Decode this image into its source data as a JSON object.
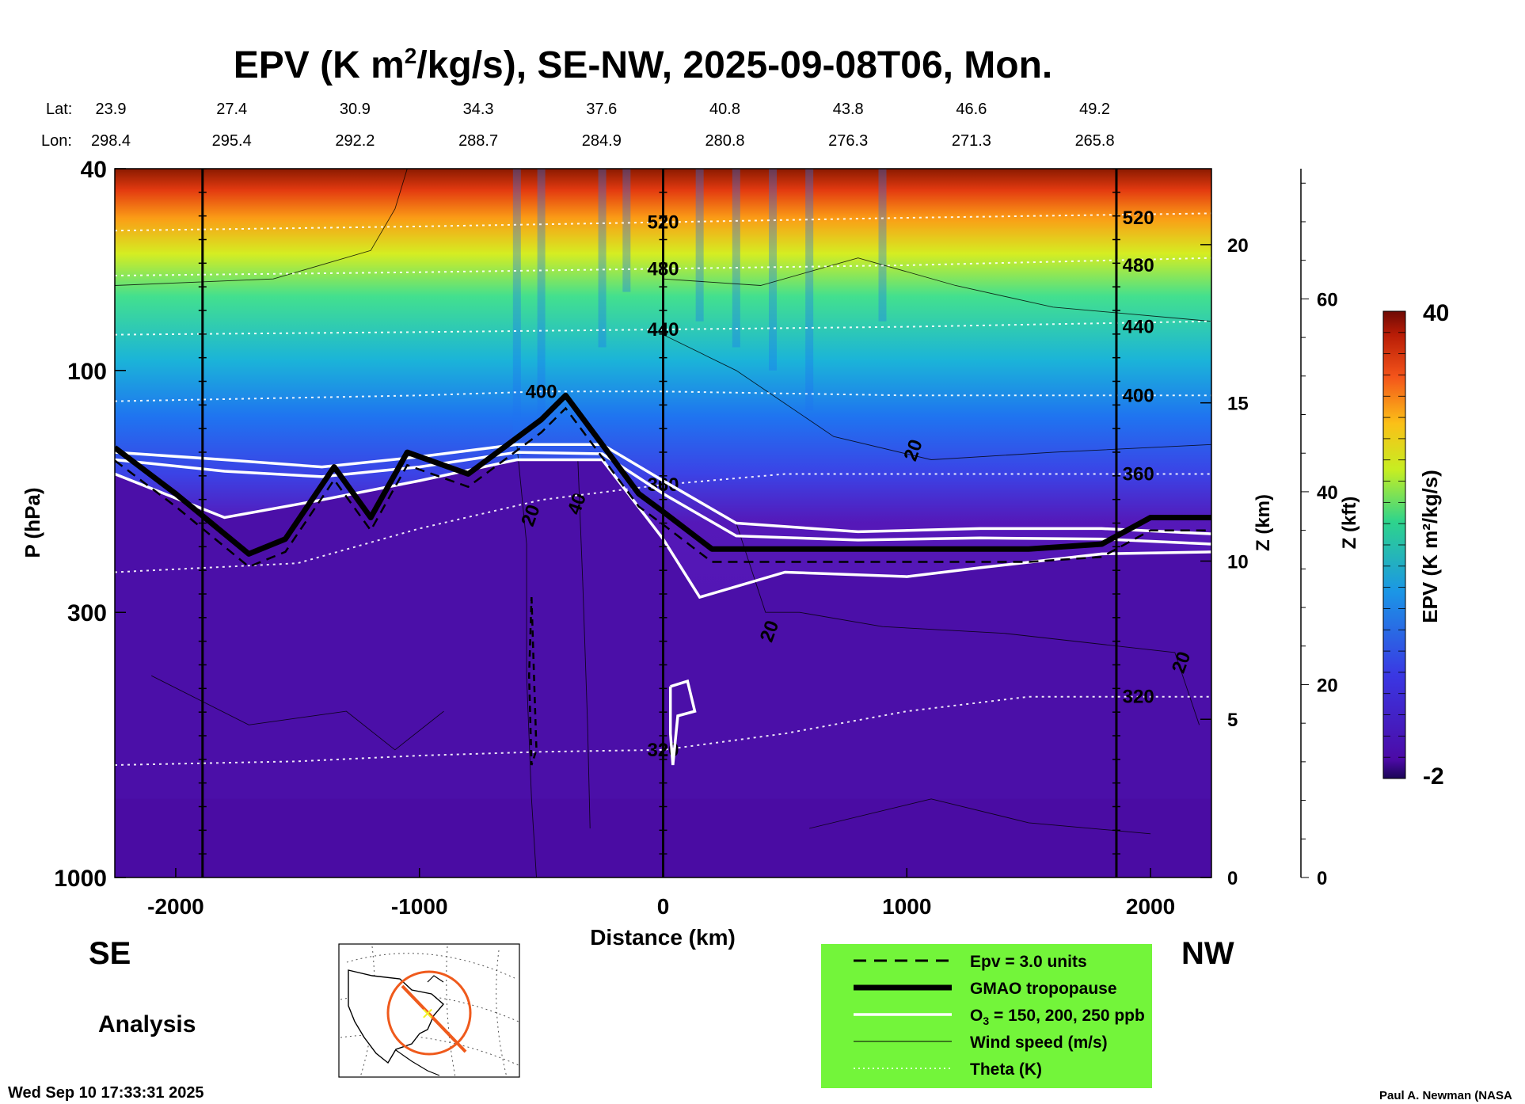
{
  "chart_data": {
    "type": "heatmap",
    "title": {
      "prefix": "EPV (K m",
      "sup": "2",
      "suffix": "/kg/s), SE-NW, 2025-09-08T06, Mon."
    },
    "xlabel": "Distance (km)",
    "ylabel": "P (hPa)",
    "xlim": [
      -2250,
      2250
    ],
    "x_ticks": [
      {
        "value": -2000,
        "label": "-2000"
      },
      {
        "value": -1000,
        "label": "-1000"
      },
      {
        "value": 0,
        "label": "0"
      },
      {
        "value": 1000,
        "label": "1000"
      },
      {
        "value": 2000,
        "label": "2000"
      }
    ],
    "ylim": [
      1000,
      40
    ],
    "y_ticks": [
      {
        "value": 40,
        "label": "40"
      },
      {
        "value": 100,
        "label": "100"
      },
      {
        "value": 300,
        "label": "300"
      },
      {
        "value": 1000,
        "label": "1000"
      }
    ],
    "z_km_axis": {
      "label": "Z (km)",
      "ticks": [
        {
          "value": 0,
          "label": "0"
        },
        {
          "value": 5,
          "label": "5"
        },
        {
          "value": 10,
          "label": "10"
        },
        {
          "value": 15,
          "label": "15"
        },
        {
          "value": 20,
          "label": "20"
        }
      ]
    },
    "z_kft_axis": {
      "label": "Z (kft)",
      "ticks": [
        {
          "value": 0,
          "label": "0"
        },
        {
          "value": 20,
          "label": "20"
        },
        {
          "value": 40,
          "label": "40"
        },
        {
          "value": 60,
          "label": "60"
        }
      ]
    },
    "colorbar": {
      "label": "EPV (K m²/kg/s)",
      "min": -2,
      "max": 40,
      "min_label": "-2",
      "max_label": "40"
    },
    "lat_lon_header": {
      "lat_label": "Lat:",
      "lon_label": "Lon:",
      "points": [
        {
          "distance": -2250,
          "lat": "23.9",
          "lon": "298.4"
        },
        {
          "distance": -1750,
          "lat": "27.4",
          "lon": "295.4"
        },
        {
          "distance": -1250,
          "lat": "30.9",
          "lon": "292.2"
        },
        {
          "distance": -750,
          "lat": "34.3",
          "lon": "288.7"
        },
        {
          "distance": -250,
          "lat": "37.6",
          "lon": "284.9"
        },
        {
          "distance": 250,
          "lat": "40.8",
          "lon": "280.8"
        },
        {
          "distance": 750,
          "lat": "43.8",
          "lon": "276.3"
        },
        {
          "distance": 1250,
          "lat": "46.6",
          "lon": "271.3"
        },
        {
          "distance": 1750,
          "lat": "49.2",
          "lon": "265.8"
        }
      ]
    },
    "vertical_markers_km": [
      -1890,
      0,
      1860
    ],
    "theta_isentropes": [
      {
        "label": "320",
        "points": [
          [
            -2250,
            600
          ],
          [
            -1500,
            590
          ],
          [
            -1000,
            575
          ],
          [
            -500,
            565
          ],
          [
            0,
            560
          ],
          [
            500,
            520
          ],
          [
            1000,
            470
          ],
          [
            1500,
            440
          ],
          [
            2250,
            440
          ]
        ]
      },
      {
        "label": "360",
        "points": [
          [
            -2250,
            250
          ],
          [
            -1500,
            240
          ],
          [
            -1000,
            205
          ],
          [
            -500,
            180
          ],
          [
            0,
            168
          ],
          [
            500,
            160
          ],
          [
            1000,
            160
          ],
          [
            1500,
            160
          ],
          [
            2250,
            160
          ]
        ]
      },
      {
        "label": "400",
        "points": [
          [
            -2250,
            115
          ],
          [
            -1000,
            112
          ],
          [
            -500,
            110
          ],
          [
            0,
            110
          ],
          [
            1000,
            112
          ],
          [
            2250,
            112
          ]
        ]
      },
      {
        "label": "440",
        "points": [
          [
            -2250,
            85
          ],
          [
            -1000,
            84
          ],
          [
            0,
            83
          ],
          [
            1000,
            82
          ],
          [
            2250,
            80
          ]
        ]
      },
      {
        "label": "480",
        "points": [
          [
            -2250,
            65
          ],
          [
            -1000,
            64
          ],
          [
            0,
            63
          ],
          [
            1000,
            62
          ],
          [
            2250,
            60
          ]
        ]
      },
      {
        "label": "520",
        "points": [
          [
            -2250,
            53
          ],
          [
            -1000,
            52
          ],
          [
            0,
            51
          ],
          [
            1000,
            50
          ],
          [
            2250,
            49
          ]
        ]
      }
    ],
    "gmao_tropopause": {
      "label": "GMAO tropopause",
      "points": [
        [
          -2250,
          142
        ],
        [
          -2000,
          175
        ],
        [
          -1700,
          230
        ],
        [
          -1550,
          215
        ],
        [
          -1350,
          155
        ],
        [
          -1200,
          195
        ],
        [
          -1050,
          145
        ],
        [
          -800,
          160
        ],
        [
          -500,
          125
        ],
        [
          -400,
          112
        ],
        [
          -250,
          140
        ],
        [
          -100,
          175
        ],
        [
          0,
          190
        ],
        [
          200,
          225
        ],
        [
          600,
          225
        ],
        [
          1000,
          225
        ],
        [
          1500,
          225
        ],
        [
          1800,
          220
        ],
        [
          2000,
          195
        ],
        [
          2250,
          195
        ]
      ]
    },
    "ozone_contours": [
      {
        "label": "150 ppb",
        "points": [
          [
            -2250,
            145
          ],
          [
            -1800,
            150
          ],
          [
            -1400,
            155
          ],
          [
            -1000,
            148
          ],
          [
            -600,
            140
          ],
          [
            -250,
            140
          ],
          [
            0,
            165
          ],
          [
            300,
            200
          ],
          [
            800,
            208
          ],
          [
            1300,
            205
          ],
          [
            1800,
            205
          ],
          [
            2250,
            210
          ]
        ]
      },
      {
        "label": "200 ppb",
        "points": [
          [
            -2250,
            150
          ],
          [
            -1800,
            158
          ],
          [
            -1400,
            162
          ],
          [
            -1000,
            155
          ],
          [
            -600,
            145
          ],
          [
            -250,
            146
          ],
          [
            0,
            175
          ],
          [
            300,
            212
          ],
          [
            800,
            216
          ],
          [
            1300,
            214
          ],
          [
            1800,
            215
          ],
          [
            2250,
            220
          ]
        ]
      },
      {
        "label": "250 ppb",
        "points": [
          [
            -2250,
            160
          ],
          [
            -1800,
            195
          ],
          [
            -1400,
            180
          ],
          [
            -1000,
            165
          ],
          [
            -600,
            150
          ],
          [
            -250,
            150
          ],
          [
            0,
            215
          ],
          [
            150,
            280
          ],
          [
            500,
            250
          ],
          [
            1000,
            255
          ],
          [
            1300,
            245
          ],
          [
            1800,
            230
          ],
          [
            2250,
            228
          ]
        ]
      }
    ],
    "wind_contours": [
      {
        "label": "20",
        "x": 1050,
        "p": 145
      },
      {
        "label": "20",
        "x": -520,
        "p": 195
      },
      {
        "label": "40",
        "x": -330,
        "p": 185
      },
      {
        "label": "20",
        "x": 460,
        "p": 330
      },
      {
        "label": "20",
        "x": 2150,
        "p": 380
      }
    ],
    "legend": {
      "position": "bottom-center",
      "items": [
        {
          "style": "dashed",
          "label": "Epv = 3.0 units"
        },
        {
          "style": "thick",
          "label": "GMAO tropopause"
        },
        {
          "style": "white",
          "label_parts": [
            "O",
            "3",
            " = 150, 200, 250 ppb"
          ]
        },
        {
          "style": "thin",
          "label": "Wind speed (m/s)"
        },
        {
          "style": "dotted",
          "label": "Theta (K)"
        }
      ]
    },
    "colors": {
      "stratosphere_top": "#8b1a00",
      "background_low": "#4b0fa8",
      "legend_bg": "#73f53a"
    }
  },
  "annotations": {
    "se_label": "SE",
    "nw_label": "NW",
    "analysis_label": "Analysis",
    "timestamp": "Wed Sep 10 17:33:31 2025",
    "credit": "Paul A. Newman (NASA"
  },
  "inset_map": {
    "icon": "globe-map-icon"
  }
}
